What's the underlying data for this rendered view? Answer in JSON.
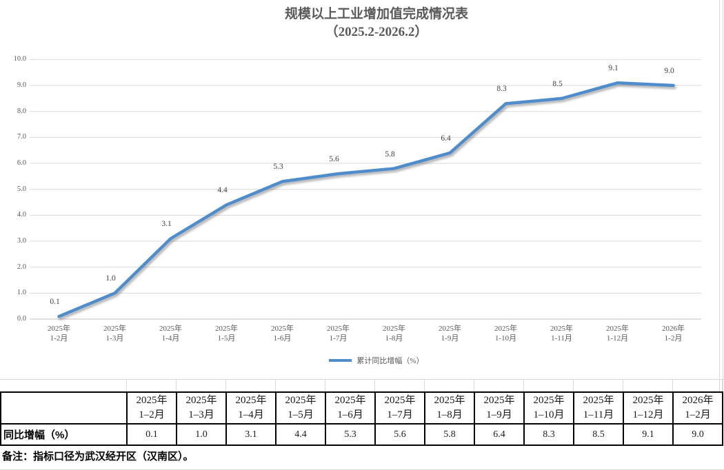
{
  "chart": {
    "title_line1": "规模以上工业增加值完成情况表",
    "title_line2": "（2025.2-2026.2）",
    "legend_label": "累计同比增幅（%）",
    "colors": {
      "line": "#4F8CCB",
      "grid": "#D9D9D9",
      "axis_line": "#BFBFBF",
      "axis_text": "#595959",
      "data_label": "#404040"
    }
  },
  "chart_data": {
    "type": "line",
    "title": "规模以上工业增加值完成情况表（2025.2-2026.2）",
    "categories": [
      [
        "2025年",
        "1-2月"
      ],
      [
        "2025年",
        "1-3月"
      ],
      [
        "2025年",
        "1-4月"
      ],
      [
        "2025年",
        "1-5月"
      ],
      [
        "2025年",
        "1-6月"
      ],
      [
        "2025年",
        "1-7月"
      ],
      [
        "2025年",
        "1-8月"
      ],
      [
        "2025年",
        "1-9月"
      ],
      [
        "2025年",
        "1-10月"
      ],
      [
        "2025年",
        "1-11月"
      ],
      [
        "2025年",
        "1-12月"
      ],
      [
        "2026年",
        "1-2月"
      ]
    ],
    "series": [
      {
        "name": "累计同比增幅（%）",
        "values": [
          0.1,
          1.0,
          3.1,
          4.4,
          5.3,
          5.6,
          5.8,
          6.4,
          8.3,
          8.5,
          9.1,
          9.0
        ],
        "labels": [
          "0.1",
          "1.0",
          "3.1",
          "4.4",
          "5.3",
          "5.6",
          "5.8",
          "6.4",
          "8.3",
          "8.5",
          "9.1",
          "9.0"
        ]
      }
    ],
    "ylim": [
      0,
      10
    ],
    "ytick_step": 1.0,
    "ytick_format_decimals": 1,
    "grid": true,
    "legend_position": "bottom"
  },
  "table": {
    "corner_label": "",
    "columns": [
      [
        "2025年",
        "1–2月"
      ],
      [
        "2025年",
        "1–3月"
      ],
      [
        "2025年",
        "1–4月"
      ],
      [
        "2025年",
        "1–5月"
      ],
      [
        "2025年",
        "1–6月"
      ],
      [
        "2025年",
        "1–7月"
      ],
      [
        "2025年",
        "1–8月"
      ],
      [
        "2025年",
        "1–9月"
      ],
      [
        "2025年",
        "1–10月"
      ],
      [
        "2025年",
        "1–11月"
      ],
      [
        "2025年",
        "1–12月"
      ],
      [
        "2026年",
        "1–2月"
      ]
    ],
    "row_label": "同比增幅（%）",
    "values": [
      "0.1",
      "1.0",
      "3.1",
      "4.4",
      "5.3",
      "5.6",
      "5.8",
      "6.4",
      "8.3",
      "8.5",
      "9.1",
      "9.0"
    ]
  },
  "note": "备注：指标口径为武汉经开区（汉南区）。"
}
